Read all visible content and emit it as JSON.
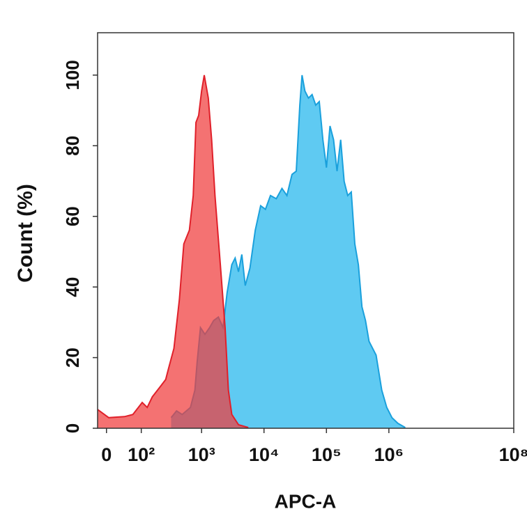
{
  "chart_data": {
    "type": "area",
    "x_label": "APC-A",
    "y_label": "Count (%)",
    "xscale": "asinh",
    "xlim": [
      -20,
      100000000
    ],
    "xticks": [
      0,
      {
        "value": 100,
        "label": "10²"
      },
      {
        "value": 1000,
        "label": "10³"
      },
      {
        "value": 10000,
        "label": "10⁴"
      },
      {
        "value": 100000,
        "label": "10⁵"
      },
      {
        "value": 1000000,
        "label": "10⁶"
      },
      {
        "value": 100000000,
        "label": "10⁸"
      }
    ],
    "ylim": [
      0,
      112
    ],
    "yticks": [
      0,
      20,
      40,
      60,
      80,
      100
    ],
    "series": [
      {
        "color": "#1aa0dc",
        "fill": "#5fcaf2",
        "x": [
          323,
          396,
          487,
          663,
          781,
          848,
          960,
          1132,
          1346,
          1562,
          1858,
          2210,
          2563,
          3050,
          3450,
          3900,
          4410,
          5000,
          5940,
          7240,
          8840,
          10540,
          12700,
          15700,
          19400,
          23300,
          28100,
          32900,
          37500,
          40700,
          45200,
          51600,
          58900,
          67300,
          76800,
          87700,
          100000,
          114000,
          130000,
          148000,
          169000,
          192000,
          219000,
          250000,
          285000,
          325000,
          370000,
          422000,
          481000,
          624000,
          769000,
          924000,
          1120000,
          1390000,
          1830000
        ],
        "values": [
          3,
          4.9,
          3.9,
          5.9,
          10.8,
          18.7,
          28.5,
          26.6,
          28.5,
          30.5,
          31.5,
          28.5,
          38.4,
          46.3,
          48.2,
          44.3,
          49.2,
          40.4,
          45.3,
          56.1,
          63,
          62,
          65.9,
          65,
          67.9,
          65.9,
          71.9,
          72.8,
          91.5,
          100,
          95.5,
          93.5,
          94.5,
          91.5,
          92.5,
          81.7,
          73.8,
          85.6,
          81.7,
          72.8,
          81.7,
          69.9,
          65.9,
          66.9,
          52.2,
          46.3,
          34.4,
          30.5,
          24.6,
          20.7,
          10.8,
          5.9,
          3,
          1.4,
          0.2
        ]
      },
      {
        "color": "#e0202a",
        "fill": "rgba(240,60,60,0.72)",
        "x": [
          -20,
          5,
          43,
          68,
          104,
          128,
          157,
          214,
          263,
          291,
          358,
          439,
          518,
          637,
          734,
          812,
          898,
          1000,
          1104,
          1281,
          1450,
          1640,
          2000,
          2380,
          2690,
          3050,
          3900,
          5600
        ],
        "values": [
          5.3,
          3,
          3.3,
          3.9,
          7.3,
          5.9,
          8.9,
          11.8,
          13.8,
          16.7,
          22.6,
          36.4,
          52.2,
          56.1,
          65.9,
          86.6,
          88.6,
          95.5,
          100,
          93.5,
          81.7,
          65.9,
          46.3,
          28.5,
          10.8,
          3.9,
          1,
          0.2
        ]
      }
    ]
  }
}
